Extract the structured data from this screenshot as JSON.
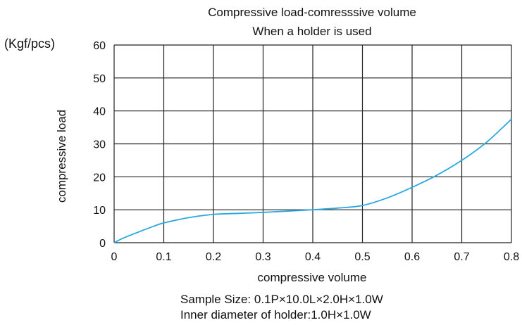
{
  "chart_data": {
    "type": "line",
    "title": "Compressive load-comresssive volume",
    "subtitle": "When a holder is used",
    "unit_label": "(Kgf/pcs)",
    "xlabel": "compressive volume",
    "ylabel": "compressive load",
    "xlim": [
      0,
      0.8
    ],
    "ylim": [
      0,
      60
    ],
    "x_ticks": [
      "0",
      "0.1",
      "0.2",
      "0.3",
      "0.4",
      "0.5",
      "0.6",
      "0.7",
      "0.8"
    ],
    "y_ticks": [
      "0",
      "10",
      "20",
      "30",
      "40",
      "50",
      "60"
    ],
    "grid": true,
    "legend": "none",
    "line_color": "#29a8e0",
    "series": [
      {
        "x": [
          0,
          0.02,
          0.05,
          0.08,
          0.1,
          0.15,
          0.2,
          0.25,
          0.3,
          0.35,
          0.4,
          0.45,
          0.5,
          0.55,
          0.6,
          0.65,
          0.7,
          0.75,
          0.8
        ],
        "values": [
          0,
          1.5,
          3.3,
          5.0,
          6.0,
          7.6,
          8.6,
          8.9,
          9.2,
          9.6,
          10.0,
          10.5,
          11.3,
          13.6,
          16.8,
          20.5,
          25.0,
          30.5,
          37.5
        ]
      }
    ],
    "notes": [
      "Sample Size:   0.1P×10.0L×2.0H×1.0W",
      "Inner diameter of holder:1.0H×1.0W"
    ]
  }
}
